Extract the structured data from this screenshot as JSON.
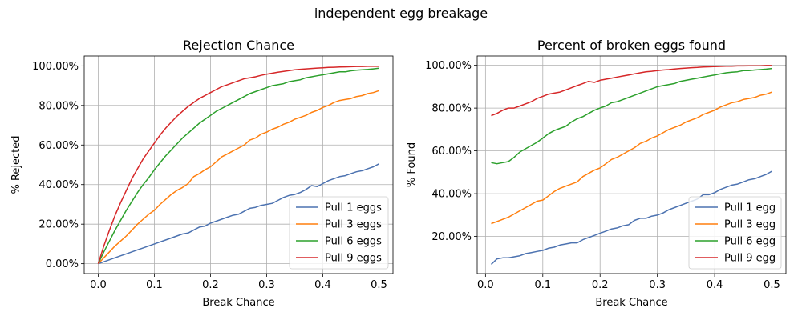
{
  "figure": {
    "suptitle": "independent egg breakage"
  },
  "chart_data": [
    {
      "type": "line",
      "title": "Rejection Chance",
      "xlabel": "Break Chance",
      "ylabel": "% Rejected",
      "xlim": [
        -0.025,
        0.525
      ],
      "ylim": [
        -0.05,
        1.05
      ],
      "xticks": [
        0.0,
        0.1,
        0.2,
        0.3,
        0.4,
        0.5
      ],
      "xtick_labels": [
        "0.0",
        "0.1",
        "0.2",
        "0.3",
        "0.4",
        "0.5"
      ],
      "yticks": [
        0.0,
        0.2,
        0.4,
        0.6,
        0.8,
        1.0
      ],
      "ytick_labels": [
        "0.00%",
        "20.00%",
        "40.00%",
        "60.00%",
        "80.00%",
        "100.00%"
      ],
      "grid": true,
      "legend_position": "lower-right",
      "x": [
        0.0,
        0.01,
        0.02,
        0.03,
        0.04,
        0.05,
        0.06,
        0.07,
        0.08,
        0.09,
        0.1,
        0.11,
        0.12,
        0.13,
        0.14,
        0.15,
        0.16,
        0.17,
        0.18,
        0.19,
        0.2,
        0.21,
        0.22,
        0.23,
        0.24,
        0.25,
        0.26,
        0.27,
        0.28,
        0.29,
        0.3,
        0.31,
        0.32,
        0.33,
        0.34,
        0.35,
        0.36,
        0.37,
        0.38,
        0.39,
        0.4,
        0.41,
        0.42,
        0.43,
        0.44,
        0.45,
        0.46,
        0.47,
        0.48,
        0.49,
        0.5
      ],
      "series": [
        {
          "name": "Pull 1 eggs",
          "color": "#4c72b0",
          "values": [
            0.0,
            0.01,
            0.02,
            0.03,
            0.04,
            0.05,
            0.06,
            0.07,
            0.08,
            0.09,
            0.1,
            0.11,
            0.12,
            0.13,
            0.14,
            0.15,
            0.155,
            0.17,
            0.185,
            0.19,
            0.205,
            0.215,
            0.225,
            0.235,
            0.245,
            0.25,
            0.265,
            0.28,
            0.285,
            0.295,
            0.3,
            0.305,
            0.32,
            0.335,
            0.345,
            0.35,
            0.36,
            0.375,
            0.395,
            0.39,
            0.405,
            0.42,
            0.43,
            0.44,
            0.445,
            0.455,
            0.465,
            0.47,
            0.48,
            0.49,
            0.505
          ]
        },
        {
          "name": "Pull 3 eggs",
          "color": "#ff7f0e",
          "values": [
            0.0,
            0.03,
            0.06,
            0.09,
            0.115,
            0.14,
            0.17,
            0.2,
            0.225,
            0.25,
            0.27,
            0.3,
            0.325,
            0.35,
            0.37,
            0.385,
            0.405,
            0.44,
            0.455,
            0.475,
            0.49,
            0.515,
            0.54,
            0.555,
            0.57,
            0.585,
            0.6,
            0.625,
            0.635,
            0.655,
            0.665,
            0.68,
            0.69,
            0.705,
            0.715,
            0.73,
            0.74,
            0.75,
            0.765,
            0.775,
            0.79,
            0.8,
            0.815,
            0.825,
            0.83,
            0.835,
            0.845,
            0.85,
            0.86,
            0.865,
            0.875
          ]
        },
        {
          "name": "Pull 6 eggs",
          "color": "#2ca02c",
          "values": [
            0.0,
            0.06,
            0.115,
            0.17,
            0.22,
            0.27,
            0.315,
            0.36,
            0.4,
            0.435,
            0.475,
            0.51,
            0.545,
            0.575,
            0.605,
            0.635,
            0.66,
            0.685,
            0.71,
            0.73,
            0.75,
            0.77,
            0.785,
            0.8,
            0.815,
            0.83,
            0.845,
            0.86,
            0.87,
            0.88,
            0.89,
            0.9,
            0.905,
            0.91,
            0.92,
            0.925,
            0.93,
            0.94,
            0.945,
            0.95,
            0.955,
            0.96,
            0.965,
            0.97,
            0.97,
            0.975,
            0.978,
            0.98,
            0.982,
            0.985,
            0.988
          ]
        },
        {
          "name": "Pull 9 eggs",
          "color": "#d62728",
          "values": [
            0.0,
            0.09,
            0.17,
            0.245,
            0.31,
            0.37,
            0.43,
            0.48,
            0.53,
            0.57,
            0.61,
            0.65,
            0.685,
            0.715,
            0.745,
            0.77,
            0.795,
            0.815,
            0.835,
            0.85,
            0.865,
            0.88,
            0.895,
            0.905,
            0.915,
            0.925,
            0.935,
            0.94,
            0.945,
            0.952,
            0.958,
            0.963,
            0.968,
            0.972,
            0.976,
            0.98,
            0.983,
            0.985,
            0.987,
            0.989,
            0.99,
            0.992,
            0.993,
            0.994,
            0.995,
            0.996,
            0.997,
            0.997,
            0.998,
            0.998,
            0.998
          ]
        }
      ]
    },
    {
      "type": "line",
      "title": "Percent of broken eggs found",
      "xlabel": "Break Chance",
      "ylabel": "% Found",
      "xlim": [
        -0.0145,
        0.5245
      ],
      "ylim": [
        0.0265,
        1.0435
      ],
      "xticks": [
        0.0,
        0.1,
        0.2,
        0.3,
        0.4,
        0.5
      ],
      "xtick_labels": [
        "0.0",
        "0.1",
        "0.2",
        "0.3",
        "0.4",
        "0.5"
      ],
      "yticks": [
        0.2,
        0.4,
        0.6,
        0.8,
        1.0
      ],
      "ytick_labels": [
        "20.00%",
        "40.00%",
        "60.00%",
        "80.00%",
        "100.00%"
      ],
      "grid": true,
      "legend_position": "lower-right",
      "x": [
        0.01,
        0.02,
        0.03,
        0.04,
        0.05,
        0.06,
        0.07,
        0.08,
        0.09,
        0.1,
        0.11,
        0.12,
        0.13,
        0.14,
        0.15,
        0.16,
        0.17,
        0.18,
        0.19,
        0.2,
        0.21,
        0.22,
        0.23,
        0.24,
        0.25,
        0.26,
        0.27,
        0.28,
        0.29,
        0.3,
        0.31,
        0.32,
        0.33,
        0.34,
        0.35,
        0.36,
        0.37,
        0.38,
        0.39,
        0.4,
        0.41,
        0.42,
        0.43,
        0.44,
        0.45,
        0.46,
        0.47,
        0.48,
        0.49,
        0.5
      ],
      "series": [
        {
          "name": "Pull 1 egg",
          "color": "#4c72b0",
          "values": [
            0.07,
            0.095,
            0.1,
            0.1,
            0.105,
            0.11,
            0.12,
            0.125,
            0.13,
            0.135,
            0.145,
            0.15,
            0.16,
            0.165,
            0.17,
            0.17,
            0.185,
            0.195,
            0.205,
            0.215,
            0.225,
            0.235,
            0.24,
            0.25,
            0.255,
            0.275,
            0.285,
            0.285,
            0.295,
            0.3,
            0.31,
            0.325,
            0.335,
            0.345,
            0.355,
            0.365,
            0.375,
            0.395,
            0.395,
            0.405,
            0.42,
            0.43,
            0.44,
            0.445,
            0.455,
            0.465,
            0.47,
            0.48,
            0.49,
            0.505
          ]
        },
        {
          "name": "Pull 3 egg",
          "color": "#ff7f0e",
          "values": [
            0.26,
            0.27,
            0.28,
            0.29,
            0.305,
            0.32,
            0.335,
            0.35,
            0.365,
            0.37,
            0.39,
            0.41,
            0.425,
            0.435,
            0.445,
            0.455,
            0.48,
            0.495,
            0.51,
            0.52,
            0.54,
            0.56,
            0.57,
            0.585,
            0.6,
            0.615,
            0.635,
            0.645,
            0.66,
            0.67,
            0.685,
            0.7,
            0.71,
            0.72,
            0.735,
            0.745,
            0.755,
            0.77,
            0.78,
            0.79,
            0.805,
            0.815,
            0.825,
            0.83,
            0.84,
            0.845,
            0.85,
            0.86,
            0.865,
            0.875
          ]
        },
        {
          "name": "Pull 6 egg",
          "color": "#2ca02c",
          "values": [
            0.545,
            0.54,
            0.545,
            0.55,
            0.57,
            0.595,
            0.61,
            0.625,
            0.64,
            0.66,
            0.68,
            0.695,
            0.705,
            0.715,
            0.735,
            0.75,
            0.76,
            0.775,
            0.79,
            0.8,
            0.81,
            0.825,
            0.83,
            0.84,
            0.85,
            0.86,
            0.87,
            0.88,
            0.89,
            0.9,
            0.905,
            0.91,
            0.915,
            0.925,
            0.93,
            0.935,
            0.94,
            0.945,
            0.95,
            0.955,
            0.96,
            0.965,
            0.968,
            0.97,
            0.975,
            0.975,
            0.978,
            0.98,
            0.982,
            0.985
          ]
        },
        {
          "name": "Pull 9 egg",
          "color": "#d62728",
          "values": [
            0.765,
            0.775,
            0.79,
            0.8,
            0.8,
            0.81,
            0.82,
            0.83,
            0.845,
            0.855,
            0.865,
            0.87,
            0.875,
            0.885,
            0.895,
            0.905,
            0.915,
            0.925,
            0.92,
            0.93,
            0.935,
            0.94,
            0.945,
            0.95,
            0.955,
            0.96,
            0.965,
            0.97,
            0.972,
            0.975,
            0.978,
            0.98,
            0.983,
            0.985,
            0.987,
            0.989,
            0.99,
            0.992,
            0.993,
            0.994,
            0.995,
            0.996,
            0.996,
            0.997,
            0.997,
            0.998,
            0.998,
            0.998,
            0.999,
            0.999
          ]
        }
      ]
    }
  ]
}
